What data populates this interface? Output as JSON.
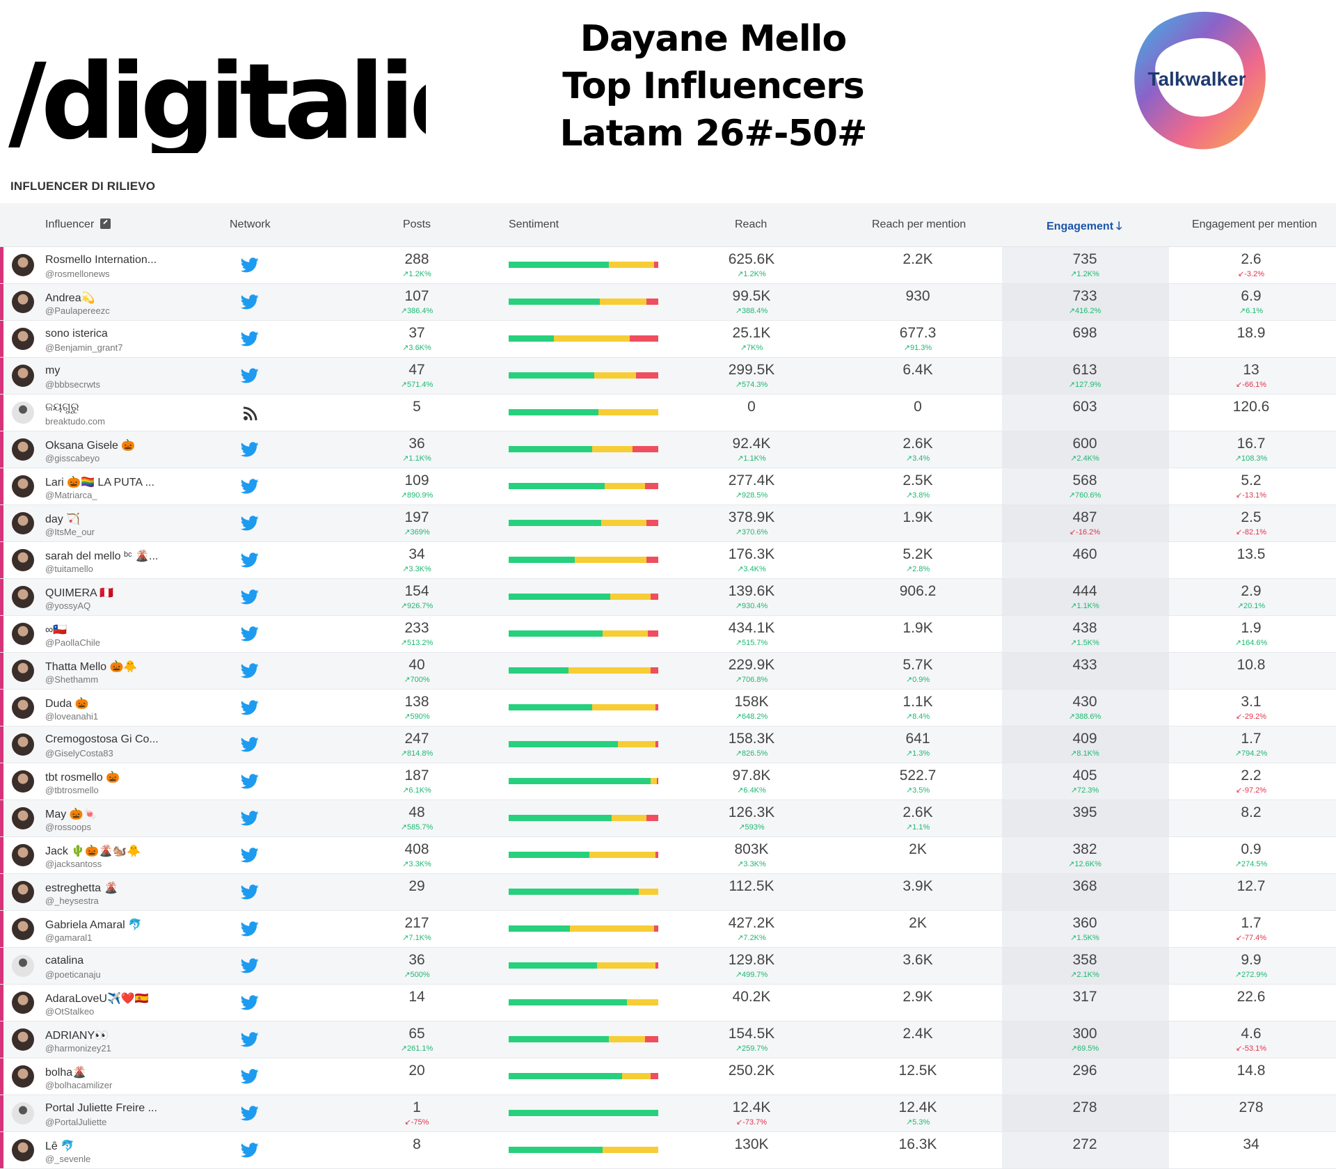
{
  "branding": {
    "left_logo": "/digitalic",
    "title_lines": [
      "Dayane Mello",
      "Top Influencers",
      "Latam 26#-50#"
    ],
    "right_logo": "Talkwalker"
  },
  "section_label": "INFLUENCER DI RILIEVO",
  "columns": {
    "influencer": "Influencer",
    "network": "Network",
    "posts": "Posts",
    "sentiment": "Sentiment",
    "reach": "Reach",
    "reach_per_mention": "Reach per mention",
    "engagement": "Engagement",
    "engagement_per_mention": "Engagement per mention"
  },
  "colors": {
    "accent": "#d6337a",
    "positive": "#27d07c",
    "neutral": "#f7cd35",
    "negative": "#ef4e5e",
    "twitter": "#1d9bf0",
    "up": "#1db870",
    "down": "#e0344a",
    "sort_active": "#1a55a8"
  },
  "rows": [
    {
      "name": "Rosmello Internation...",
      "handle": "@rosmellonews",
      "network": "twitter",
      "posts": "288",
      "posts_chg": "1.2K%",
      "posts_dir": "up",
      "sent": [
        0.67,
        0.3,
        0.03
      ],
      "reach": "625.6K",
      "reach_chg": "1.2K%",
      "reach_dir": "up",
      "rpm": "2.2K",
      "rpm_chg": "",
      "rpm_dir": "",
      "eng": "735",
      "eng_chg": "1.2K%",
      "eng_dir": "up",
      "epm": "2.6",
      "epm_chg": "-3.2%",
      "epm_dir": "down"
    },
    {
      "name": "Andrea💫",
      "handle": "@Paulapereezc",
      "network": "twitter",
      "posts": "107",
      "posts_chg": "386.4%",
      "posts_dir": "up",
      "sent": [
        0.61,
        0.31,
        0.08
      ],
      "reach": "99.5K",
      "reach_chg": "388.4%",
      "reach_dir": "up",
      "rpm": "930",
      "rpm_chg": "",
      "rpm_dir": "",
      "eng": "733",
      "eng_chg": "416.2%",
      "eng_dir": "up",
      "epm": "6.9",
      "epm_chg": "6.1%",
      "epm_dir": "up"
    },
    {
      "name": "sono isterica",
      "handle": "@Benjamin_grant7",
      "network": "twitter",
      "posts": "37",
      "posts_chg": "3.6K%",
      "posts_dir": "up",
      "sent": [
        0.3,
        0.51,
        0.19
      ],
      "reach": "25.1K",
      "reach_chg": "7K%",
      "reach_dir": "up",
      "rpm": "677.3",
      "rpm_chg": "91.3%",
      "rpm_dir": "up",
      "eng": "698",
      "eng_chg": "",
      "eng_dir": "",
      "epm": "18.9",
      "epm_chg": "",
      "epm_dir": ""
    },
    {
      "name": "my",
      "handle": "@bbbsecrwts",
      "network": "twitter",
      "posts": "47",
      "posts_chg": "571.4%",
      "posts_dir": "up",
      "sent": [
        0.57,
        0.28,
        0.15
      ],
      "reach": "299.5K",
      "reach_chg": "574.3%",
      "reach_dir": "up",
      "rpm": "6.4K",
      "rpm_chg": "",
      "rpm_dir": "",
      "eng": "613",
      "eng_chg": "127.9%",
      "eng_dir": "up",
      "epm": "13",
      "epm_chg": "-66.1%",
      "epm_dir": "down"
    },
    {
      "name": "ଜୟଗୁରୁ",
      "handle": "breaktudo.com",
      "network": "blog",
      "posts": "5",
      "posts_chg": "",
      "posts_dir": "",
      "sent": [
        0.6,
        0.4,
        0
      ],
      "reach": "0",
      "reach_chg": "",
      "reach_dir": "",
      "rpm": "0",
      "rpm_chg": "",
      "rpm_dir": "",
      "eng": "603",
      "eng_chg": "",
      "eng_dir": "",
      "epm": "120.6",
      "epm_chg": "",
      "epm_dir": ""
    },
    {
      "name": "Oksana Gisele 🎃",
      "handle": "@gisscabeyo",
      "network": "twitter",
      "posts": "36",
      "posts_chg": "1.1K%",
      "posts_dir": "up",
      "sent": [
        0.56,
        0.27,
        0.17
      ],
      "reach": "92.4K",
      "reach_chg": "1.1K%",
      "reach_dir": "up",
      "rpm": "2.6K",
      "rpm_chg": "3.4%",
      "rpm_dir": "up",
      "eng": "600",
      "eng_chg": "2.4K%",
      "eng_dir": "up",
      "epm": "16.7",
      "epm_chg": "108.3%",
      "epm_dir": "up"
    },
    {
      "name": "Lari 🎃🏳️‍🌈 LA PUTA ...",
      "handle": "@Matriarca_",
      "network": "twitter",
      "posts": "109",
      "posts_chg": "890.9%",
      "posts_dir": "up",
      "sent": [
        0.64,
        0.27,
        0.09
      ],
      "reach": "277.4K",
      "reach_chg": "928.5%",
      "reach_dir": "up",
      "rpm": "2.5K",
      "rpm_chg": "3.8%",
      "rpm_dir": "up",
      "eng": "568",
      "eng_chg": "760.6%",
      "eng_dir": "up",
      "epm": "5.2",
      "epm_chg": "-13.1%",
      "epm_dir": "down"
    },
    {
      "name": "day 🏹",
      "handle": "@ItsMe_our",
      "network": "twitter",
      "posts": "197",
      "posts_chg": "369%",
      "posts_dir": "up",
      "sent": [
        0.62,
        0.3,
        0.08
      ],
      "reach": "378.9K",
      "reach_chg": "370.6%",
      "reach_dir": "up",
      "rpm": "1.9K",
      "rpm_chg": "",
      "rpm_dir": "",
      "eng": "487",
      "eng_chg": "-16.2%",
      "eng_dir": "down",
      "epm": "2.5",
      "epm_chg": "-82.1%",
      "epm_dir": "down"
    },
    {
      "name": "sarah del mello ᵇᶜ 🌋...",
      "handle": "@tuitamello",
      "network": "twitter",
      "posts": "34",
      "posts_chg": "3.3K%",
      "posts_dir": "up",
      "sent": [
        0.44,
        0.48,
        0.08
      ],
      "reach": "176.3K",
      "reach_chg": "3.4K%",
      "reach_dir": "up",
      "rpm": "5.2K",
      "rpm_chg": "2.8%",
      "rpm_dir": "up",
      "eng": "460",
      "eng_chg": "",
      "eng_dir": "",
      "epm": "13.5",
      "epm_chg": "",
      "epm_dir": ""
    },
    {
      "name": "QUIMERA 🇵🇪",
      "handle": "@yossyAQ",
      "network": "twitter",
      "posts": "154",
      "posts_chg": "926.7%",
      "posts_dir": "up",
      "sent": [
        0.68,
        0.27,
        0.05
      ],
      "reach": "139.6K",
      "reach_chg": "930.4%",
      "reach_dir": "up",
      "rpm": "906.2",
      "rpm_chg": "",
      "rpm_dir": "",
      "eng": "444",
      "eng_chg": "1.1K%",
      "eng_dir": "up",
      "epm": "2.9",
      "epm_chg": "20.1%",
      "epm_dir": "up"
    },
    {
      "name": "∞🇨🇱",
      "handle": "@PaollaChile",
      "network": "twitter",
      "posts": "233",
      "posts_chg": "513.2%",
      "posts_dir": "up",
      "sent": [
        0.63,
        0.3,
        0.07
      ],
      "reach": "434.1K",
      "reach_chg": "515.7%",
      "reach_dir": "up",
      "rpm": "1.9K",
      "rpm_chg": "",
      "rpm_dir": "",
      "eng": "438",
      "eng_chg": "1.5K%",
      "eng_dir": "up",
      "epm": "1.9",
      "epm_chg": "164.6%",
      "epm_dir": "up"
    },
    {
      "name": "Thatta Mello 🎃🐥",
      "handle": "@Shethamm",
      "network": "twitter",
      "posts": "40",
      "posts_chg": "700%",
      "posts_dir": "up",
      "sent": [
        0.4,
        0.55,
        0.05
      ],
      "reach": "229.9K",
      "reach_chg": "706.8%",
      "reach_dir": "up",
      "rpm": "5.7K",
      "rpm_chg": "0.9%",
      "rpm_dir": "up",
      "eng": "433",
      "eng_chg": "",
      "eng_dir": "",
      "epm": "10.8",
      "epm_chg": "",
      "epm_dir": ""
    },
    {
      "name": "Duda 🎃",
      "handle": "@loveanahi1",
      "network": "twitter",
      "posts": "138",
      "posts_chg": "590%",
      "posts_dir": "up",
      "sent": [
        0.56,
        0.42,
        0.02
      ],
      "reach": "158K",
      "reach_chg": "648.2%",
      "reach_dir": "up",
      "rpm": "1.1K",
      "rpm_chg": "8.4%",
      "rpm_dir": "up",
      "eng": "430",
      "eng_chg": "388.6%",
      "eng_dir": "up",
      "epm": "3.1",
      "epm_chg": "-29.2%",
      "epm_dir": "down"
    },
    {
      "name": "Cremogostosa Gi Co...",
      "handle": "@GiselyCosta83",
      "network": "twitter",
      "posts": "247",
      "posts_chg": "814.8%",
      "posts_dir": "up",
      "sent": [
        0.73,
        0.25,
        0.02
      ],
      "reach": "158.3K",
      "reach_chg": "826.5%",
      "reach_dir": "up",
      "rpm": "641",
      "rpm_chg": "1.3%",
      "rpm_dir": "up",
      "eng": "409",
      "eng_chg": "8.1K%",
      "eng_dir": "up",
      "epm": "1.7",
      "epm_chg": "794.2%",
      "epm_dir": "up"
    },
    {
      "name": "tbt rosmello 🎃",
      "handle": "@tbtrosmello",
      "network": "twitter",
      "posts": "187",
      "posts_chg": "6.1K%",
      "posts_dir": "up",
      "sent": [
        0.95,
        0.04,
        0.01
      ],
      "reach": "97.8K",
      "reach_chg": "6.4K%",
      "reach_dir": "up",
      "rpm": "522.7",
      "rpm_chg": "3.5%",
      "rpm_dir": "up",
      "eng": "405",
      "eng_chg": "72.3%",
      "eng_dir": "up",
      "epm": "2.2",
      "epm_chg": "-97.2%",
      "epm_dir": "down"
    },
    {
      "name": "May 🎃🍬",
      "handle": "@rossoops",
      "network": "twitter",
      "posts": "48",
      "posts_chg": "585.7%",
      "posts_dir": "up",
      "sent": [
        0.69,
        0.23,
        0.08
      ],
      "reach": "126.3K",
      "reach_chg": "593%",
      "reach_dir": "up",
      "rpm": "2.6K",
      "rpm_chg": "1.1%",
      "rpm_dir": "up",
      "eng": "395",
      "eng_chg": "",
      "eng_dir": "",
      "epm": "8.2",
      "epm_chg": "",
      "epm_dir": ""
    },
    {
      "name": "Jack 🌵🎃🌋🐿️🐥",
      "handle": "@jacksantoss",
      "network": "twitter",
      "posts": "408",
      "posts_chg": "3.3K%",
      "posts_dir": "up",
      "sent": [
        0.54,
        0.44,
        0.02
      ],
      "reach": "803K",
      "reach_chg": "3.3K%",
      "reach_dir": "up",
      "rpm": "2K",
      "rpm_chg": "",
      "rpm_dir": "",
      "eng": "382",
      "eng_chg": "12.6K%",
      "eng_dir": "up",
      "epm": "0.9",
      "epm_chg": "274.5%",
      "epm_dir": "up"
    },
    {
      "name": "estreghetta 🌋",
      "handle": "@_heysestra",
      "network": "twitter",
      "posts": "29",
      "posts_chg": "",
      "posts_dir": "",
      "sent": [
        0.87,
        0.13,
        0
      ],
      "reach": "112.5K",
      "reach_chg": "",
      "reach_dir": "",
      "rpm": "3.9K",
      "rpm_chg": "",
      "rpm_dir": "",
      "eng": "368",
      "eng_chg": "",
      "eng_dir": "",
      "epm": "12.7",
      "epm_chg": "",
      "epm_dir": ""
    },
    {
      "name": "Gabriela Amaral 🐬",
      "handle": "@gamaral1",
      "network": "twitter",
      "posts": "217",
      "posts_chg": "7.1K%",
      "posts_dir": "up",
      "sent": [
        0.41,
        0.56,
        0.03
      ],
      "reach": "427.2K",
      "reach_chg": "7.2K%",
      "reach_dir": "up",
      "rpm": "2K",
      "rpm_chg": "",
      "rpm_dir": "",
      "eng": "360",
      "eng_chg": "1.5K%",
      "eng_dir": "up",
      "epm": "1.7",
      "epm_chg": "-77.4%",
      "epm_dir": "down"
    },
    {
      "name": "catalina",
      "handle": "@poeticanaju",
      "network": "twitter",
      "posts": "36",
      "posts_chg": "500%",
      "posts_dir": "up",
      "sent": [
        0.59,
        0.39,
        0.02
      ],
      "reach": "129.8K",
      "reach_chg": "499.7%",
      "reach_dir": "up",
      "rpm": "3.6K",
      "rpm_chg": "",
      "rpm_dir": "",
      "eng": "358",
      "eng_chg": "2.1K%",
      "eng_dir": "up",
      "epm": "9.9",
      "epm_chg": "272.9%",
      "epm_dir": "up"
    },
    {
      "name": "AdaraLoveU✈️❤️🇪🇸",
      "handle": "@OtStalkeo",
      "network": "twitter",
      "posts": "14",
      "posts_chg": "",
      "posts_dir": "",
      "sent": [
        0.79,
        0.21,
        0
      ],
      "reach": "40.2K",
      "reach_chg": "",
      "reach_dir": "",
      "rpm": "2.9K",
      "rpm_chg": "",
      "rpm_dir": "",
      "eng": "317",
      "eng_chg": "",
      "eng_dir": "",
      "epm": "22.6",
      "epm_chg": "",
      "epm_dir": ""
    },
    {
      "name": "ADRIANY👀",
      "handle": "@harmonizey21",
      "network": "twitter",
      "posts": "65",
      "posts_chg": "261.1%",
      "posts_dir": "up",
      "sent": [
        0.67,
        0.24,
        0.09
      ],
      "reach": "154.5K",
      "reach_chg": "259.7%",
      "reach_dir": "up",
      "rpm": "2.4K",
      "rpm_chg": "",
      "rpm_dir": "",
      "eng": "300",
      "eng_chg": "69.5%",
      "eng_dir": "up",
      "epm": "4.6",
      "epm_chg": "-53.1%",
      "epm_dir": "down"
    },
    {
      "name": "bolha🌋",
      "handle": "@bolhacamilizer",
      "network": "twitter",
      "posts": "20",
      "posts_chg": "",
      "posts_dir": "",
      "sent": [
        0.76,
        0.19,
        0.05
      ],
      "reach": "250.2K",
      "reach_chg": "",
      "reach_dir": "",
      "rpm": "12.5K",
      "rpm_chg": "",
      "rpm_dir": "",
      "eng": "296",
      "eng_chg": "",
      "eng_dir": "",
      "epm": "14.8",
      "epm_chg": "",
      "epm_dir": ""
    },
    {
      "name": "Portal Juliette Freire ...",
      "handle": "@PortalJuliette",
      "network": "twitter",
      "posts": "1",
      "posts_chg": "-75%",
      "posts_dir": "down",
      "sent": [
        1,
        0,
        0
      ],
      "reach": "12.4K",
      "reach_chg": "-73.7%",
      "reach_dir": "down",
      "rpm": "12.4K",
      "rpm_chg": "5.3%",
      "rpm_dir": "up",
      "eng": "278",
      "eng_chg": "",
      "eng_dir": "",
      "epm": "278",
      "epm_chg": "",
      "epm_dir": ""
    },
    {
      "name": "Lê 🐬",
      "handle": "@_sevenle",
      "network": "twitter",
      "posts": "8",
      "posts_chg": "",
      "posts_dir": "",
      "sent": [
        0.63,
        0.37,
        0
      ],
      "reach": "130K",
      "reach_chg": "",
      "reach_dir": "",
      "rpm": "16.3K",
      "rpm_chg": "",
      "rpm_dir": "",
      "eng": "272",
      "eng_chg": "",
      "eng_dir": "",
      "epm": "34",
      "epm_chg": "",
      "epm_dir": ""
    }
  ]
}
